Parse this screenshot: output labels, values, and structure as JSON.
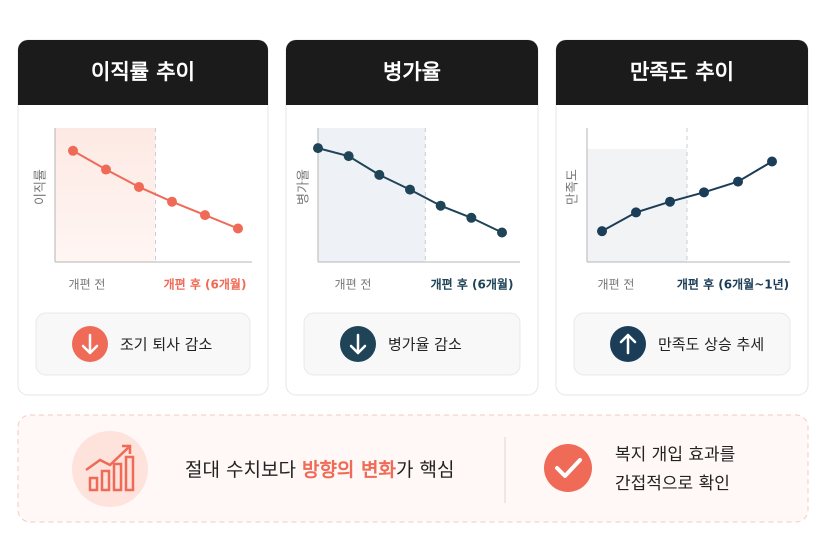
{
  "chart_data": [
    {
      "type": "line",
      "title": "이직률 추이",
      "y_label": "이직률",
      "categories": [
        null,
        null,
        null,
        null,
        null,
        null
      ],
      "values": [
        83,
        69,
        56,
        45,
        35,
        25
      ],
      "color": "#ef6b57",
      "ylim": [
        0,
        100
      ],
      "before_label": "개편 전",
      "after_label": "개편 후 (6개월)",
      "badge": "조기 퇴사 감소",
      "trend": "down"
    },
    {
      "type": "line",
      "title": "병가율",
      "y_label": "병가율",
      "categories": [
        null,
        null,
        null,
        null,
        null,
        null,
        null
      ],
      "values": [
        85,
        79,
        65,
        54,
        42,
        33,
        22
      ],
      "color": "#1f4458",
      "ylim": [
        0,
        100
      ],
      "before_label": "개편 전",
      "after_label": "개편 후 (6개월)",
      "badge": "병가율 감소",
      "trend": "down"
    },
    {
      "type": "line",
      "title": "만족도 추이",
      "y_label": "만족도",
      "categories": [
        null,
        null,
        null,
        null,
        null,
        null
      ],
      "values": [
        23,
        37,
        45,
        52,
        60,
        75
      ],
      "color": "#1c3d57",
      "ylim": [
        0,
        100
      ],
      "before_label": "개편 전",
      "after_label": "개편 후 (6개월~1년)",
      "badge": "만족도 상승 추세",
      "trend": "up"
    }
  ],
  "summary": {
    "parts": [
      "절대 수치보다 ",
      "방향의 변화",
      "가 핵심"
    ],
    "note": [
      "복지 개입 효과를",
      "간접적으로 확인"
    ]
  }
}
